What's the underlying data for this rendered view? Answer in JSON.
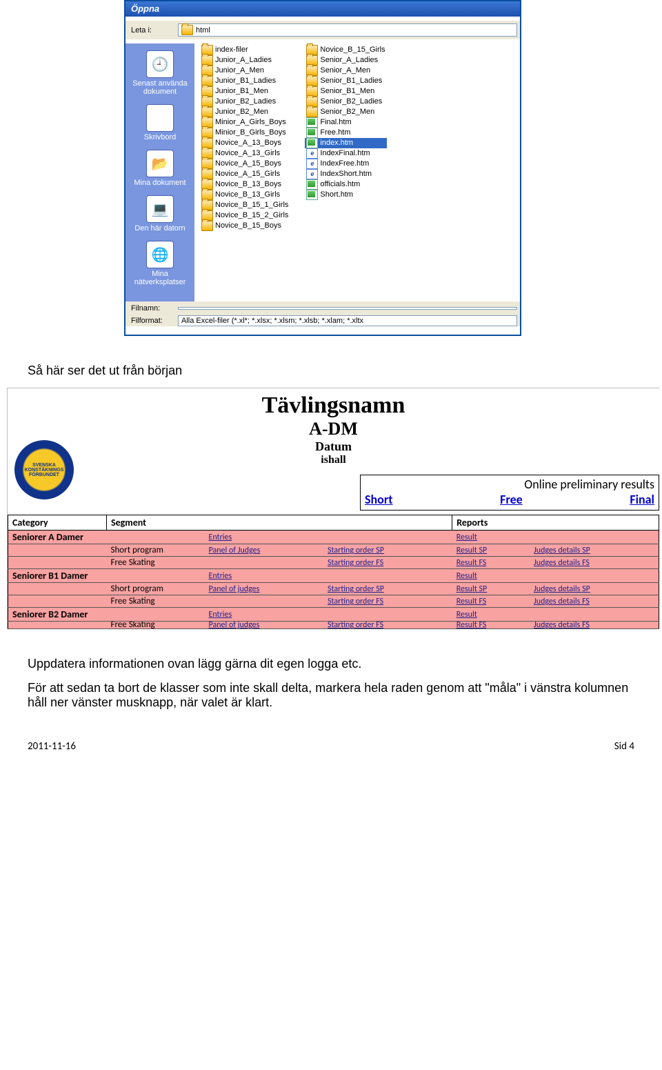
{
  "dialog": {
    "title": "Öppna",
    "lookin_label": "Leta i:",
    "lookin_value": "html",
    "nav": [
      {
        "label": "Senast använda dokument",
        "icon": "ni-recent"
      },
      {
        "label": "Skrivbord",
        "icon": "ni-desktop"
      },
      {
        "label": "Mina dokument",
        "icon": "ni-docs"
      },
      {
        "label": "Den här datorn",
        "icon": "ni-comp"
      },
      {
        "label": "Mina nätverksplatser",
        "icon": "ni-net"
      }
    ],
    "col1": [
      {
        "t": "folder",
        "n": "index-filer"
      },
      {
        "t": "folder",
        "n": "Junior_A_Ladies"
      },
      {
        "t": "folder",
        "n": "Junior_A_Men"
      },
      {
        "t": "folder",
        "n": "Junior_B1_Ladies"
      },
      {
        "t": "folder",
        "n": "Junior_B1_Men"
      },
      {
        "t": "folder",
        "n": "Junior_B2_Ladies"
      },
      {
        "t": "folder",
        "n": "Junior_B2_Men"
      },
      {
        "t": "folder",
        "n": "Minior_A_Girls_Boys"
      },
      {
        "t": "folder",
        "n": "Minior_B_Girls_Boys"
      },
      {
        "t": "folder",
        "n": "Novice_A_13_Boys"
      },
      {
        "t": "folder",
        "n": "Novice_A_13_Girls"
      },
      {
        "t": "folder",
        "n": "Novice_A_15_Boys"
      },
      {
        "t": "folder",
        "n": "Novice_A_15_Girls"
      },
      {
        "t": "folder",
        "n": "Novice_B_13_Boys"
      },
      {
        "t": "folder",
        "n": "Novice_B_13_Girls"
      },
      {
        "t": "folder",
        "n": "Novice_B_15_1_Girls"
      },
      {
        "t": "folder",
        "n": "Novice_B_15_2_Girls"
      },
      {
        "t": "folder",
        "n": "Novice_B_15_Boys"
      }
    ],
    "col2": [
      {
        "t": "folder",
        "n": "Novice_B_15_Girls"
      },
      {
        "t": "folder",
        "n": "Senior_A_Ladies"
      },
      {
        "t": "folder",
        "n": "Senior_A_Men"
      },
      {
        "t": "folder",
        "n": "Senior_B1_Ladies"
      },
      {
        "t": "folder",
        "n": "Senior_B1_Men"
      },
      {
        "t": "folder",
        "n": "Senior_B2_Ladies"
      },
      {
        "t": "folder",
        "n": "Senior_B2_Men"
      },
      {
        "t": "htm",
        "n": "Final.htm"
      },
      {
        "t": "htm",
        "n": "Free.htm"
      },
      {
        "t": "htm",
        "n": "index.htm",
        "sel": true
      },
      {
        "t": "ie",
        "n": "IndexFinal.htm"
      },
      {
        "t": "ie",
        "n": "IndexFree.htm"
      },
      {
        "t": "ie",
        "n": "IndexShort.htm"
      },
      {
        "t": "htm",
        "n": "officials.htm"
      },
      {
        "t": "htm",
        "n": "Short.htm"
      }
    ],
    "filename_label": "Filnamn:",
    "filename_value": "",
    "format_label": "Filformat:",
    "format_value": "Alla Excel-filer (*.xl*; *.xlsx; *.xlsm; *.xlsb; *.xlam; *.xltx"
  },
  "doc": {
    "p1": "Så här ser det ut från början",
    "p2": "Uppdatera informationen ovan lägg gärna dit egen logga etc.",
    "p3": "För att sedan ta bort de klasser som inte skall delta, markera hela raden genom att \"måla\" i vänstra kolumnen håll ner vänster musknapp, när valet är klart.",
    "footer_left": "2011-11-16",
    "footer_right": "Sid 4"
  },
  "comp": {
    "title": "Tävlingsnamn",
    "sub1": "A-DM",
    "sub2": "Datum",
    "sub3": "ishall",
    "prelim_title": "Online preliminary  results",
    "links": {
      "short": "Short",
      "free": "Free",
      "final": "Final"
    },
    "head": {
      "cat": "Category",
      "seg": "Segment",
      "rep": "Reports"
    },
    "rows": [
      {
        "c": "Seniorer A Damer",
        "s": "",
        "a": "Entries",
        "b": "",
        "r": "Result",
        "d": ""
      },
      {
        "c": "",
        "s": "Short program",
        "a": "Panel of Judges",
        "b": "Starting order SP",
        "r": "Result SP",
        "d": "Judges details SP"
      },
      {
        "c": "",
        "s": "Free Skating",
        "a": "",
        "b": "Starting order FS",
        "r": "Result FS",
        "d": "Judges details FS"
      },
      {
        "c": "Seniorer B1 Damer",
        "s": "",
        "a": "Entries",
        "b": "",
        "r": "Result",
        "d": ""
      },
      {
        "c": "",
        "s": "Short program",
        "a": "Panel of judges",
        "b": "Starting order SP",
        "r": "Result SP",
        "d": "Judges details SP"
      },
      {
        "c": "",
        "s": "Free Skating",
        "a": "",
        "b": "Starting order FS",
        "r": "Result FS",
        "d": "Judges details FS"
      },
      {
        "c": "Seniorer B2 Damer",
        "s": "",
        "a": "Entries",
        "b": "",
        "r": "Result",
        "d": ""
      }
    ],
    "cut": {
      "c": "",
      "s": "Free Skating",
      "a": "Panel of judges",
      "b": "Starting order FS",
      "r": "Result FS",
      "d": "Judges details FS"
    }
  }
}
